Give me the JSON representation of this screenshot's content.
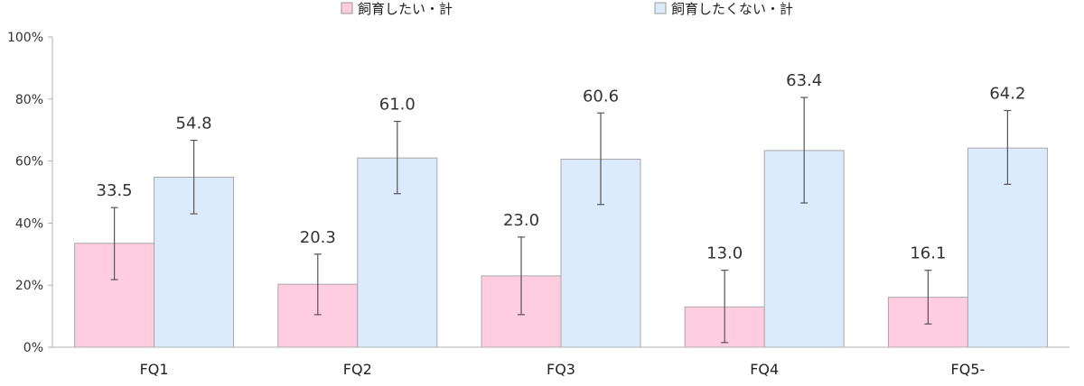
{
  "chart_data": {
    "type": "bar",
    "categories": [
      "FQ1",
      "FQ2",
      "FQ3",
      "FQ4",
      "FQ5-"
    ],
    "ylim": [
      0,
      100
    ],
    "yticks": [
      0,
      20,
      40,
      60,
      80,
      100
    ],
    "ytick_labels": [
      "0%",
      "20%",
      "40%",
      "60%",
      "80%",
      "100%"
    ],
    "legend_position": "top",
    "series": [
      {
        "name": "飼育したい・計",
        "color": "#ffcce0",
        "values": [
          33.5,
          20.3,
          23.0,
          13.0,
          16.1
        ],
        "labels": [
          "33.5",
          "20.3",
          "23.0",
          "13.0",
          "16.1"
        ],
        "error_low": [
          21.8,
          10.5,
          10.5,
          1.5,
          7.5
        ],
        "error_high": [
          45.0,
          30.0,
          35.5,
          24.8,
          24.8
        ]
      },
      {
        "name": "飼育したくない・計",
        "color": "#dcebfb",
        "values": [
          54.8,
          61.0,
          60.6,
          63.4,
          64.2
        ],
        "labels": [
          "54.8",
          "61.0",
          "60.6",
          "63.4",
          "64.2"
        ],
        "error_low": [
          43.0,
          49.5,
          46.0,
          46.5,
          52.5
        ],
        "error_high": [
          66.7,
          72.8,
          75.5,
          80.5,
          76.3
        ]
      }
    ]
  }
}
